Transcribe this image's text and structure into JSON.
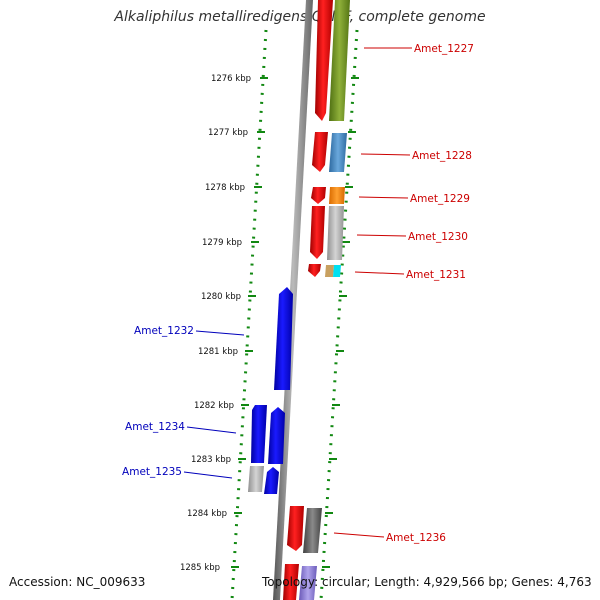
{
  "title": "Alkaliphilus metalliredigens QYMF, complete genome",
  "footer": {
    "accession": "Accession: NC_009633",
    "topology": "Topology: circular; Length: 4,929,566 bp; Genes: 4,763"
  },
  "scale_labels": [
    "1276 kbp",
    "1277 kbp",
    "1278 kbp",
    "1279 kbp",
    "1280 kbp",
    "1281 kbp",
    "1282 kbp",
    "1283 kbp",
    "1284 kbp",
    "1285 kbp"
  ],
  "gene_labels": {
    "forward": [
      "Amet_1227",
      "Amet_1228",
      "Amet_1229",
      "Amet_1230",
      "Amet_1231",
      "Amet_1236"
    ],
    "reverse": [
      "Amet_1232",
      "Amet_1234",
      "Amet_1235"
    ]
  },
  "colors": {
    "forward_label": "#cc0000",
    "reverse_label": "#0000bb",
    "forward_gene": "#ee0000",
    "reverse_gene": "#0000ee",
    "backbone": "#888888",
    "scale_dots": "#118811",
    "cog_olive": "#6b8e23",
    "cog_steelblue": "#4a86c0",
    "cog_orange": "#ff8c00",
    "cog_gray": "#aaaaaa",
    "cog_tan": "#c8a060",
    "cog_cyan": "#00e0f0",
    "cog_darkgray": "#666666",
    "cog_lavender": "#9080d0",
    "cog_lightgray": "#c0c0c0"
  }
}
